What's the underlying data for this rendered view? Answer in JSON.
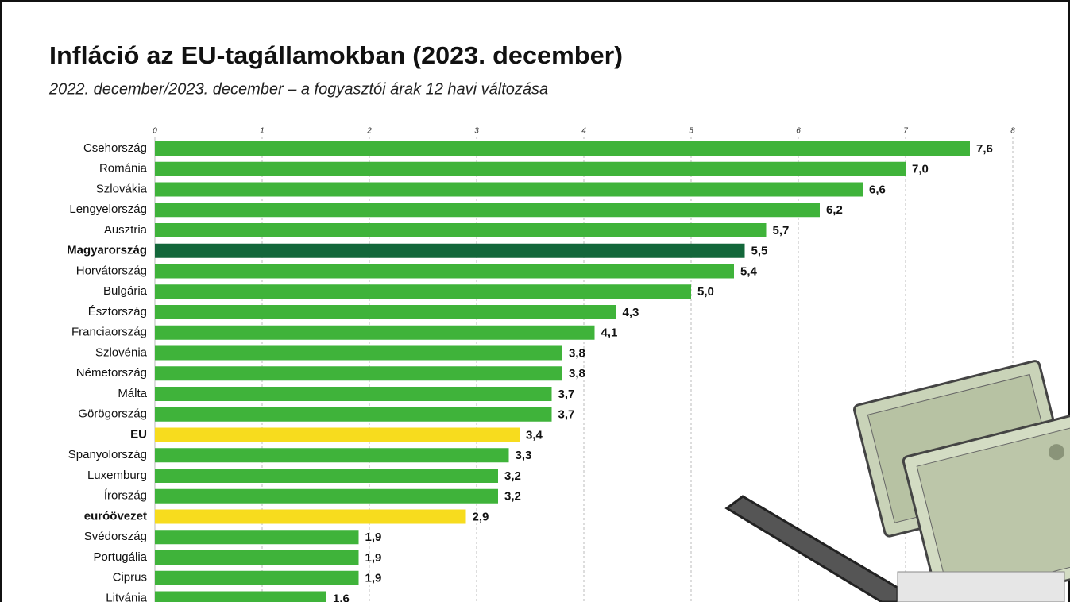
{
  "chart_data": {
    "type": "barh",
    "title": "Infláció az EU-tagállamokban (2023. december)",
    "subtitle": "2022. december/2023. december – a fogyasztói árak 12 havi változása",
    "categories": [
      "Csehország",
      "Románia",
      "Szlovákia",
      "Lengyelország",
      "Ausztria",
      "Magyarország",
      "Horvátország",
      "Bulgária",
      "Észtország",
      "Franciaország",
      "Szlovénia",
      "Németország",
      "Málta",
      "Görögország",
      "EU",
      "Spanyolország",
      "Luxemburg",
      "Írország",
      "euróövezet",
      "Svédország",
      "Portugália",
      "Ciprus",
      "Litvánia"
    ],
    "values": [
      7.6,
      7.0,
      6.6,
      6.2,
      5.7,
      5.5,
      5.4,
      5.0,
      4.3,
      4.1,
      3.8,
      3.8,
      3.7,
      3.7,
      3.4,
      3.3,
      3.2,
      3.2,
      2.9,
      1.9,
      1.9,
      1.9,
      1.6
    ],
    "value_labels": [
      "7,6",
      "7,0",
      "6,6",
      "6,2",
      "5,7",
      "5,5",
      "5,4",
      "5,0",
      "4,3",
      "4,1",
      "3,8",
      "3,8",
      "3,7",
      "3,7",
      "3,4",
      "3,3",
      "3,2",
      "3,2",
      "2,9",
      "1,9",
      "1,9",
      "1,9",
      "1,6"
    ],
    "color": "#3fb33a",
    "colors": [
      "#3fb33a",
      "#3fb33a",
      "#3fb33a",
      "#3fb33a",
      "#3fb33a",
      "#13673a",
      "#3fb33a",
      "#3fb33a",
      "#3fb33a",
      "#3fb33a",
      "#3fb33a",
      "#3fb33a",
      "#3fb33a",
      "#3fb33a",
      "#f7dc1e",
      "#3fb33a",
      "#3fb33a",
      "#3fb33a",
      "#f7dc1e",
      "#3fb33a",
      "#3fb33a",
      "#3fb33a",
      "#3fb33a"
    ],
    "xlim": [
      0,
      8
    ],
    "xticks": [
      0,
      1,
      2,
      3,
      4,
      5,
      6,
      7,
      8
    ],
    "grid": true
  }
}
